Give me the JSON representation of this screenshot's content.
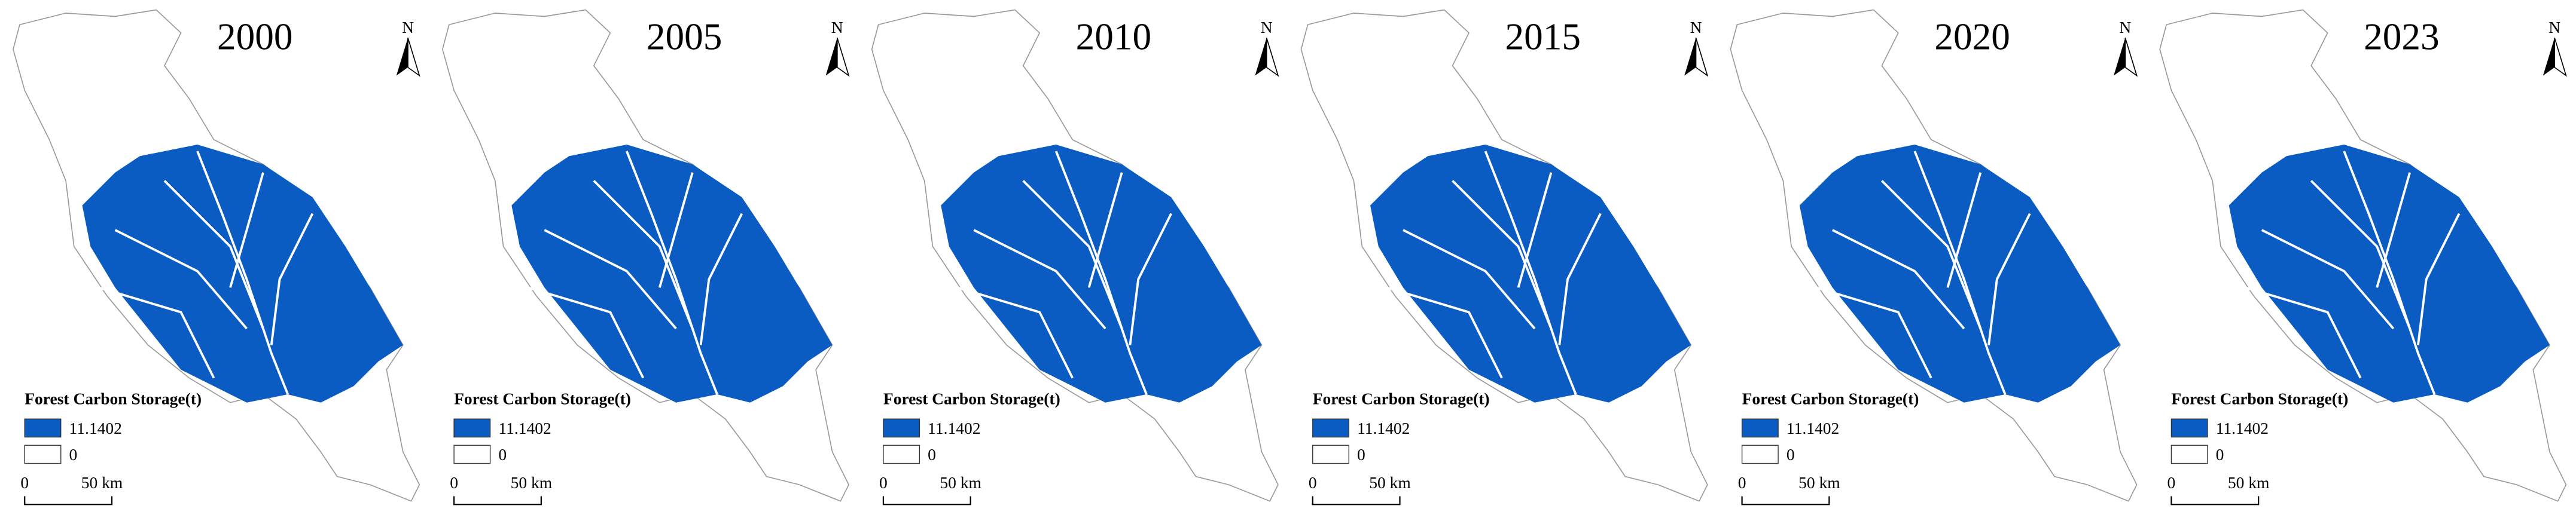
{
  "panels": [
    {
      "year": "2000"
    },
    {
      "year": "2005"
    },
    {
      "year": "2010"
    },
    {
      "year": "2015"
    },
    {
      "year": "2020"
    },
    {
      "year": "2023"
    }
  ],
  "north": "N",
  "legend": {
    "title": "Forest Carbon Storage(t)",
    "items": [
      "11.1402",
      "0"
    ]
  },
  "scale_bar": {
    "labels": [
      "0",
      "50 km"
    ]
  }
}
